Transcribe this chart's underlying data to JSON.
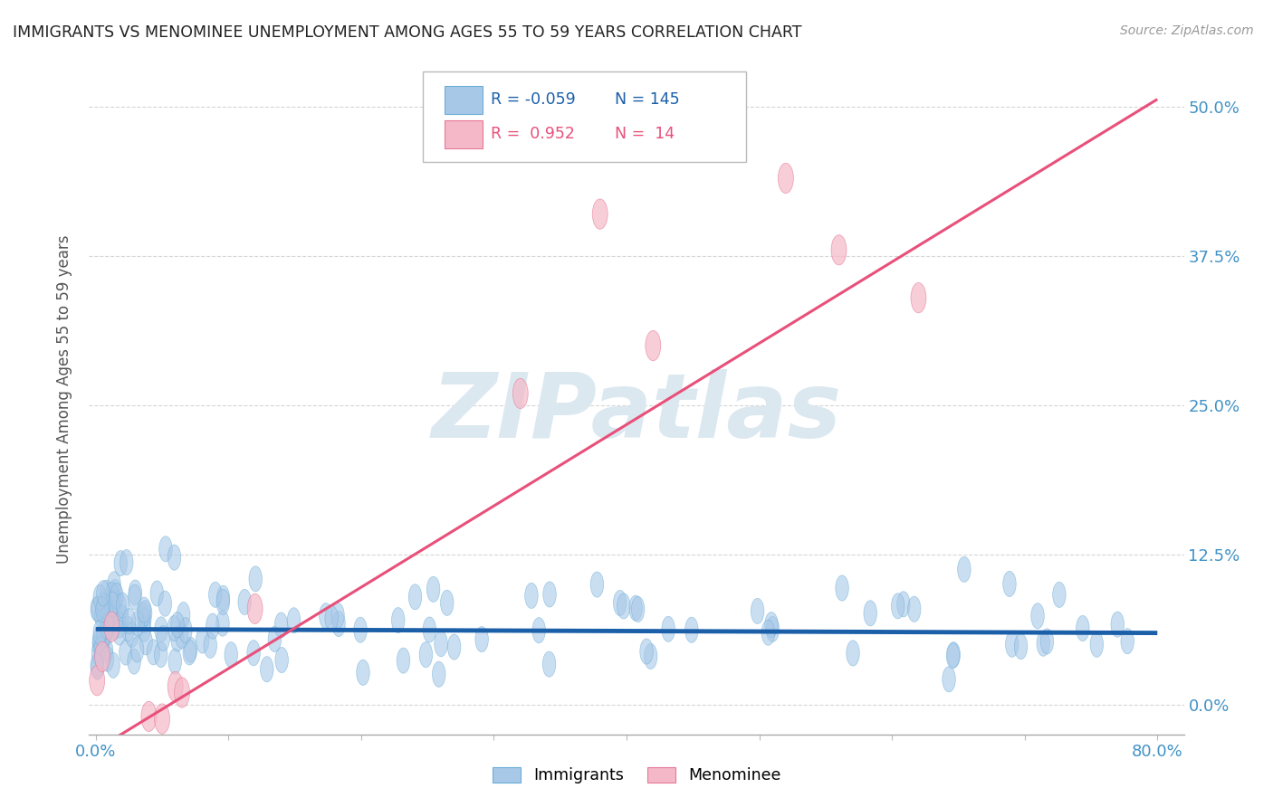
{
  "title": "IMMIGRANTS VS MENOMINEE UNEMPLOYMENT AMONG AGES 55 TO 59 YEARS CORRELATION CHART",
  "source_text": "Source: ZipAtlas.com",
  "ylabel": "Unemployment Among Ages 55 to 59 years",
  "xlim": [
    -0.005,
    0.82
  ],
  "ylim": [
    -0.025,
    0.535
  ],
  "yticks": [
    0.0,
    0.125,
    0.25,
    0.375,
    0.5
  ],
  "ytick_labels": [
    "0.0%",
    "12.5%",
    "25.0%",
    "37.5%",
    "50.0%"
  ],
  "xticks": [
    0.0,
    0.1,
    0.2,
    0.3,
    0.4,
    0.5,
    0.6,
    0.7,
    0.8
  ],
  "xtick_labels": [
    "0.0%",
    "",
    "",
    "",
    "",
    "",
    "",
    "",
    "80.0%"
  ],
  "immigrants_R": -0.059,
  "immigrants_N": 145,
  "menominee_R": 0.952,
  "menominee_N": 14,
  "blue_color": "#a8c8e8",
  "blue_edge_color": "#6baed6",
  "blue_line_color": "#1a5fa8",
  "pink_color": "#f4b8c8",
  "pink_edge_color": "#e87898",
  "pink_line_color": "#e8507a",
  "watermark_color": "#dce8f0",
  "background_color": "#ffffff",
  "grid_color": "#cccccc",
  "title_color": "#222222",
  "axis_label_color": "#555555",
  "tick_label_color_x": "#4292c6",
  "tick_label_color_right": "#4292c6",
  "immig_line_intercept": 0.063,
  "immig_line_slope": -0.004,
  "menom_line_intercept": -0.038,
  "menom_line_slope": 0.68
}
